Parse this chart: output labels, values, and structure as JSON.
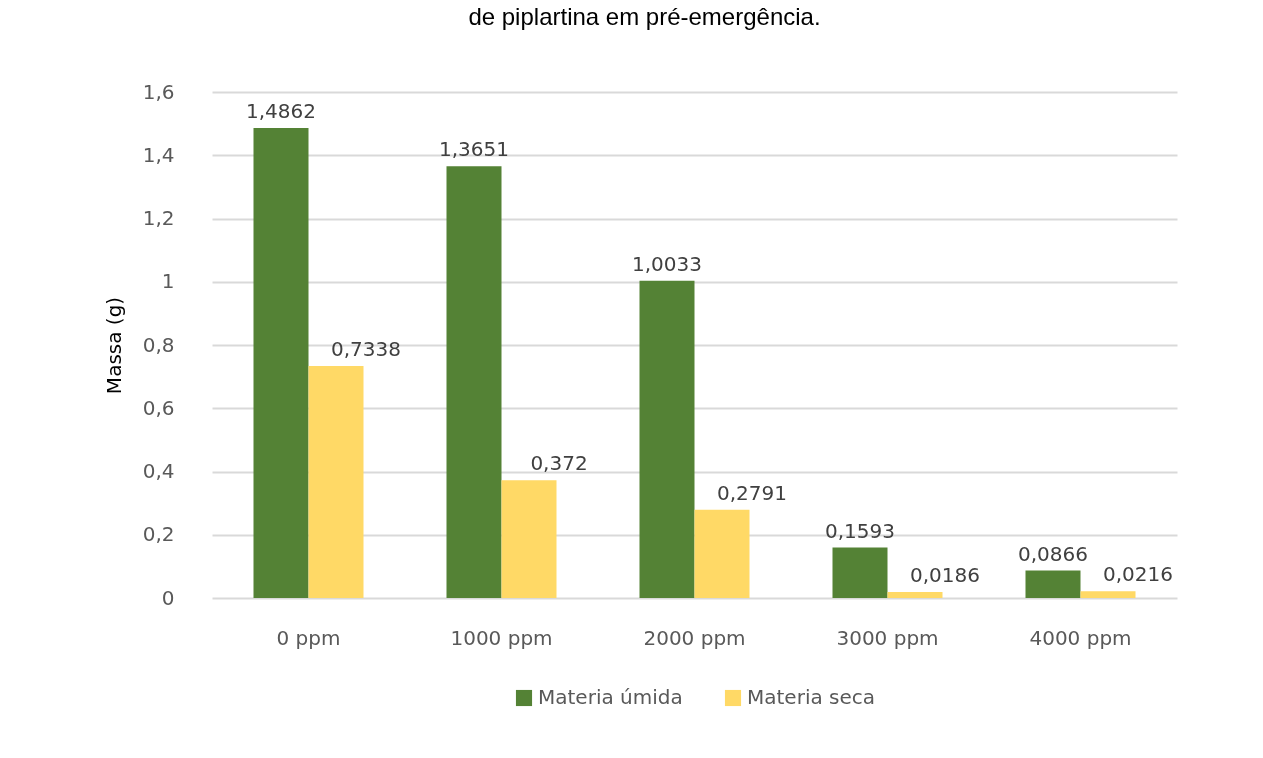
{
  "chart_data": {
    "type": "bar",
    "title": "de piplartina em pré-emergência.",
    "ylabel": "Massa (g)",
    "categories": [
      "0 ppm",
      "1000 ppm",
      "2000 ppm",
      "3000 ppm",
      "4000 ppm"
    ],
    "series": [
      {
        "name": "Materia úmida",
        "color": "#548235",
        "values": [
          1.4862,
          1.3651,
          1.0033,
          0.1593,
          0.0866
        ],
        "value_labels": [
          "1,4862",
          "1,3651",
          "1,0033",
          "0,1593",
          "0,0866"
        ]
      },
      {
        "name": "Materia seca",
        "color": "#ffd966",
        "values": [
          0.7338,
          0.372,
          0.2791,
          0.0186,
          0.0216
        ],
        "value_labels": [
          "0,7338",
          "0,372",
          "0,2791",
          "0,0186",
          "0,0216"
        ]
      }
    ],
    "ylim": [
      0,
      1.6
    ],
    "yticks": [
      0,
      {
        "value": 0.2,
        "label": "0,2"
      },
      {
        "value": 0.4,
        "label": "0,4"
      },
      {
        "value": 0.6,
        "label": "0,6"
      },
      {
        "value": 0.8,
        "label": "0,8"
      },
      1,
      {
        "value": 1.2,
        "label": "1,2"
      },
      {
        "value": 1.4,
        "label": "1,4"
      },
      {
        "value": 1.6,
        "label": "1,6"
      }
    ],
    "grid": "y",
    "legend": "bottom"
  }
}
